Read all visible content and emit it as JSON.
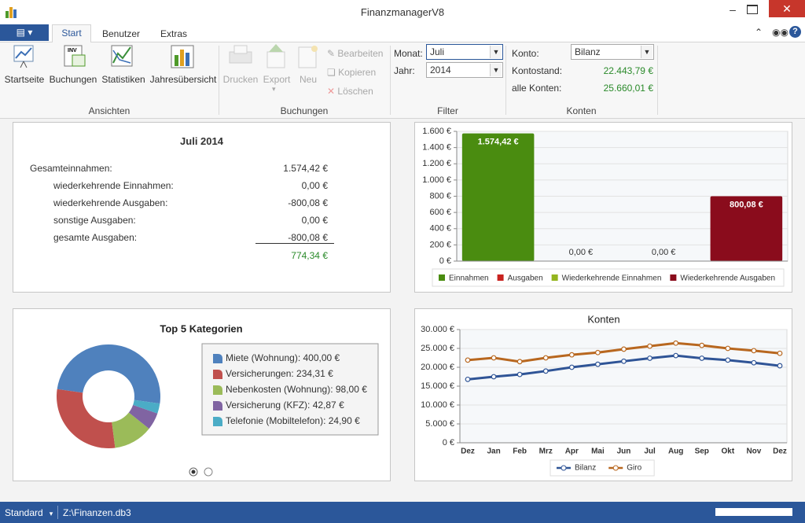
{
  "window": {
    "title": "FinanzmanagerV8"
  },
  "ribbon": {
    "tabs": [
      "Start",
      "Benutzer",
      "Extras"
    ],
    "ansichten": {
      "label": "Ansichten",
      "buttons": [
        "Startseite",
        "Buchungen",
        "Statistiken",
        "Jahresübersicht"
      ]
    },
    "buchungen": {
      "label": "Buchungen",
      "large_buttons": [
        "Drucken",
        "Export",
        "Neu"
      ],
      "small_buttons": [
        "Bearbeiten",
        "Kopieren",
        "Löschen"
      ]
    },
    "filter": {
      "label": "Filter",
      "month_label": "Monat:",
      "month": "Juli",
      "year_label": "Jahr:",
      "year": "2014"
    },
    "konten": {
      "label": "Konten",
      "account_label": "Konto:",
      "account": "Bilanz",
      "balance_label": "Kontostand:",
      "balance": "22.443,79 €",
      "all_label": "alle Konten:",
      "all_balance": "25.660,01 €"
    }
  },
  "summary": {
    "title": "Juli 2014",
    "rows": [
      [
        "Gesamteinnahmen:",
        "1.574,42 €"
      ],
      [
        "wiederkehrende Einnahmen:",
        "0,00 €"
      ],
      [
        "wiederkehrende Ausgaben:",
        "-800,08 €"
      ],
      [
        "sonstige Ausgaben:",
        "0,00 €"
      ],
      [
        "gesamte Ausgaben:",
        "-800,08 €"
      ]
    ],
    "total": "774,34 €"
  },
  "bar_chart": {
    "type": "bar",
    "categories": [
      "Einnahmen",
      "Ausgaben",
      "Wiederkehrende Einnahmen",
      "Wiederkehrende Ausgaben"
    ],
    "values": [
      1574.42,
      0,
      0,
      800.08
    ],
    "value_labels": [
      "1.574,42 €",
      "0,00 €",
      "0,00 €",
      "800,08 €"
    ],
    "colors": [
      "#4a8c10",
      "#c8221f",
      "#94b51f",
      "#8a0c1c"
    ],
    "ylim": [
      0,
      1600
    ],
    "yticks": [
      {
        "value": 0,
        "label": "0 €"
      },
      {
        "value": 200,
        "label": "200 €"
      },
      {
        "value": 400,
        "label": "400 €"
      },
      {
        "value": 600,
        "label": "600 €"
      },
      {
        "value": 800,
        "label": "800 €"
      },
      {
        "value": 1000,
        "label": "1.000 €"
      },
      {
        "value": 1200,
        "label": "1.200 €"
      },
      {
        "value": 1400,
        "label": "1.400 €"
      },
      {
        "value": 1600,
        "label": "1.600 €"
      }
    ],
    "grid": true
  },
  "donut_chart": {
    "type": "donut",
    "title": "Top 5 Kategorien",
    "categories": [
      "Miete (Wohnung): 400,00 €",
      "Versicherungen: 234,31 €",
      "Nebenkosten (Wohnung): 98,00 €",
      "Versicherung (KFZ): 42,87 €",
      "Telefonie (Mobiltelefon): 24,90 €"
    ],
    "values": [
      400,
      234.31,
      98,
      42.87,
      24.9
    ],
    "colors": [
      "#4f81bd",
      "#c0504d",
      "#9bbb59",
      "#8064a2",
      "#4bacc6"
    ]
  },
  "line_chart": {
    "type": "line",
    "title": "Konten",
    "categories": [
      "Dez",
      "Jan",
      "Feb",
      "Mrz",
      "Apr",
      "Mai",
      "Jun",
      "Jul",
      "Aug",
      "Sep",
      "Okt",
      "Nov",
      "Dez"
    ],
    "series": [
      {
        "name": "Bilanz",
        "color": "#2f5496",
        "values": [
          16800,
          17500,
          18100,
          19000,
          20000,
          20800,
          21600,
          22400,
          23100,
          22400,
          21900,
          21200,
          20400
        ]
      },
      {
        "name": "Giro",
        "color": "#b8671f",
        "values": [
          21900,
          22500,
          21500,
          22500,
          23300,
          23900,
          24800,
          25600,
          26400,
          25800,
          25000,
          24400,
          23700
        ]
      }
    ],
    "ylim": [
      0,
      30000
    ],
    "yticks": [
      {
        "value": 0,
        "label": "0 €"
      },
      {
        "value": 5000,
        "label": "5.000 €"
      },
      {
        "value": 10000,
        "label": "10.000 €"
      },
      {
        "value": 15000,
        "label": "15.000 €"
      },
      {
        "value": 20000,
        "label": "20.000 €"
      },
      {
        "value": 25000,
        "label": "25.000 €"
      },
      {
        "value": 30000,
        "label": "30.000 €"
      }
    ],
    "grid": true
  },
  "status_bar": {
    "profile": "Standard",
    "file": "Z:\\Finanzen.db3"
  }
}
